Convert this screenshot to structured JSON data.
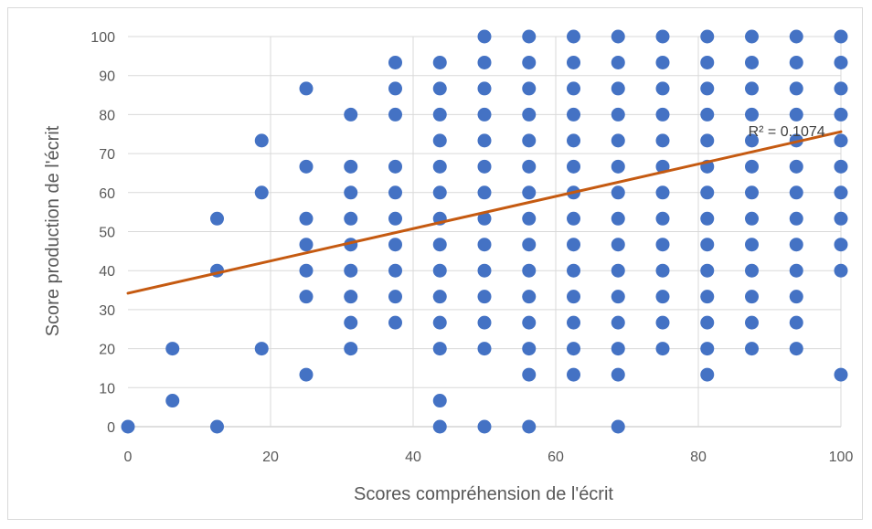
{
  "chart_data": {
    "type": "scatter",
    "title": "",
    "xlabel": "Scores compréhension de l'écrit",
    "ylabel": "Score production de l'écrit",
    "xlim": [
      0,
      100
    ],
    "ylim": [
      0,
      100
    ],
    "x_ticks": [
      "0",
      "20",
      "40",
      "60",
      "80",
      "100"
    ],
    "y_ticks": [
      "0",
      "10",
      "20",
      "30",
      "40",
      "50",
      "60",
      "70",
      "80",
      "90",
      "100"
    ],
    "grid": true,
    "legend": "none",
    "colors": {
      "points": "#4472c4",
      "trendline": "#c55a11",
      "grid": "#d9d9d9"
    },
    "trendline": {
      "type": "linear",
      "start": [
        0,
        34.2
      ],
      "end": [
        100,
        75.6
      ],
      "label": "R² = 0.1074",
      "label_at": [
        87,
        74.5
      ]
    },
    "series": [
      {
        "points": [
          [
            0,
            0
          ],
          [
            6.25,
            6.67
          ],
          [
            6.25,
            20
          ],
          [
            12.5,
            0
          ],
          [
            12.5,
            40
          ],
          [
            12.5,
            53.33
          ],
          [
            18.75,
            20
          ],
          [
            18.75,
            60
          ],
          [
            18.75,
            73.33
          ],
          [
            25,
            13.33
          ],
          [
            25,
            33.33
          ],
          [
            25,
            40
          ],
          [
            25,
            46.67
          ],
          [
            25,
            53.33
          ],
          [
            25,
            66.67
          ],
          [
            25,
            86.67
          ],
          [
            31.25,
            20
          ],
          [
            31.25,
            26.67
          ],
          [
            31.25,
            33.33
          ],
          [
            31.25,
            40
          ],
          [
            31.25,
            46.67
          ],
          [
            31.25,
            53.33
          ],
          [
            31.25,
            60
          ],
          [
            31.25,
            66.67
          ],
          [
            31.25,
            80
          ],
          [
            37.5,
            26.67
          ],
          [
            37.5,
            33.33
          ],
          [
            37.5,
            40
          ],
          [
            37.5,
            46.67
          ],
          [
            37.5,
            53.33
          ],
          [
            37.5,
            60
          ],
          [
            37.5,
            66.67
          ],
          [
            37.5,
            80
          ],
          [
            37.5,
            86.67
          ],
          [
            37.5,
            93.33
          ],
          [
            43.75,
            0
          ],
          [
            43.75,
            6.67
          ],
          [
            43.75,
            20
          ],
          [
            43.75,
            26.67
          ],
          [
            43.75,
            33.33
          ],
          [
            43.75,
            40
          ],
          [
            43.75,
            46.67
          ],
          [
            43.75,
            53.33
          ],
          [
            43.75,
            60
          ],
          [
            43.75,
            66.67
          ],
          [
            43.75,
            73.33
          ],
          [
            43.75,
            80
          ],
          [
            43.75,
            86.67
          ],
          [
            43.75,
            93.33
          ],
          [
            50,
            0
          ],
          [
            50,
            20
          ],
          [
            50,
            26.67
          ],
          [
            50,
            33.33
          ],
          [
            50,
            40
          ],
          [
            50,
            46.67
          ],
          [
            50,
            53.33
          ],
          [
            50,
            60
          ],
          [
            50,
            66.67
          ],
          [
            50,
            73.33
          ],
          [
            50,
            80
          ],
          [
            50,
            86.67
          ],
          [
            50,
            93.33
          ],
          [
            50,
            100
          ],
          [
            56.25,
            0
          ],
          [
            56.25,
            13.33
          ],
          [
            56.25,
            20
          ],
          [
            56.25,
            26.67
          ],
          [
            56.25,
            33.33
          ],
          [
            56.25,
            40
          ],
          [
            56.25,
            46.67
          ],
          [
            56.25,
            53.33
          ],
          [
            56.25,
            60
          ],
          [
            56.25,
            66.67
          ],
          [
            56.25,
            73.33
          ],
          [
            56.25,
            80
          ],
          [
            56.25,
            86.67
          ],
          [
            56.25,
            93.33
          ],
          [
            56.25,
            100
          ],
          [
            62.5,
            13.33
          ],
          [
            62.5,
            20
          ],
          [
            62.5,
            26.67
          ],
          [
            62.5,
            33.33
          ],
          [
            62.5,
            40
          ],
          [
            62.5,
            46.67
          ],
          [
            62.5,
            53.33
          ],
          [
            62.5,
            60
          ],
          [
            62.5,
            66.67
          ],
          [
            62.5,
            73.33
          ],
          [
            62.5,
            80
          ],
          [
            62.5,
            86.67
          ],
          [
            62.5,
            93.33
          ],
          [
            62.5,
            100
          ],
          [
            68.75,
            0
          ],
          [
            68.75,
            13.33
          ],
          [
            68.75,
            20
          ],
          [
            68.75,
            26.67
          ],
          [
            68.75,
            33.33
          ],
          [
            68.75,
            40
          ],
          [
            68.75,
            46.67
          ],
          [
            68.75,
            53.33
          ],
          [
            68.75,
            60
          ],
          [
            68.75,
            66.67
          ],
          [
            68.75,
            73.33
          ],
          [
            68.75,
            80
          ],
          [
            68.75,
            86.67
          ],
          [
            68.75,
            93.33
          ],
          [
            68.75,
            100
          ],
          [
            75,
            20
          ],
          [
            75,
            26.67
          ],
          [
            75,
            33.33
          ],
          [
            75,
            40
          ],
          [
            75,
            46.67
          ],
          [
            75,
            53.33
          ],
          [
            75,
            60
          ],
          [
            75,
            66.67
          ],
          [
            75,
            73.33
          ],
          [
            75,
            80
          ],
          [
            75,
            86.67
          ],
          [
            75,
            93.33
          ],
          [
            75,
            100
          ],
          [
            81.25,
            13.33
          ],
          [
            81.25,
            20
          ],
          [
            81.25,
            26.67
          ],
          [
            81.25,
            33.33
          ],
          [
            81.25,
            40
          ],
          [
            81.25,
            46.67
          ],
          [
            81.25,
            53.33
          ],
          [
            81.25,
            60
          ],
          [
            81.25,
            66.67
          ],
          [
            81.25,
            73.33
          ],
          [
            81.25,
            80
          ],
          [
            81.25,
            86.67
          ],
          [
            81.25,
            93.33
          ],
          [
            81.25,
            100
          ],
          [
            87.5,
            20
          ],
          [
            87.5,
            26.67
          ],
          [
            87.5,
            33.33
          ],
          [
            87.5,
            40
          ],
          [
            87.5,
            46.67
          ],
          [
            87.5,
            53.33
          ],
          [
            87.5,
            60
          ],
          [
            87.5,
            66.67
          ],
          [
            87.5,
            73.33
          ],
          [
            87.5,
            80
          ],
          [
            87.5,
            86.67
          ],
          [
            87.5,
            93.33
          ],
          [
            87.5,
            100
          ],
          [
            93.75,
            20
          ],
          [
            93.75,
            26.67
          ],
          [
            93.75,
            33.33
          ],
          [
            93.75,
            40
          ],
          [
            93.75,
            46.67
          ],
          [
            93.75,
            53.33
          ],
          [
            93.75,
            60
          ],
          [
            93.75,
            66.67
          ],
          [
            93.75,
            73.33
          ],
          [
            93.75,
            80
          ],
          [
            93.75,
            86.67
          ],
          [
            93.75,
            93.33
          ],
          [
            93.75,
            100
          ],
          [
            100,
            13.33
          ],
          [
            100,
            40
          ],
          [
            100,
            46.67
          ],
          [
            100,
            53.33
          ],
          [
            100,
            60
          ],
          [
            100,
            66.67
          ],
          [
            100,
            73.33
          ],
          [
            100,
            80
          ],
          [
            100,
            86.67
          ],
          [
            100,
            93.33
          ],
          [
            100,
            100
          ]
        ]
      }
    ]
  }
}
